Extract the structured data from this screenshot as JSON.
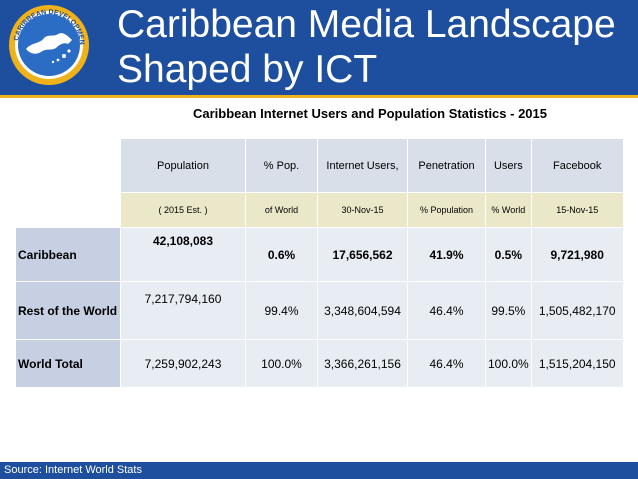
{
  "slide": {
    "title_line1": "Caribbean Media Landscape",
    "title_line2": "Shaped by ICT",
    "subtitle": "Caribbean Internet Users and Population Statistics - 2015",
    "source": "Source: Internet World Stats",
    "logo_text": "CARIBBEAN DEVELOPMENT BANK"
  },
  "colors": {
    "header_bg": "#1d4f9e",
    "accent_line": "#f0b21a",
    "row_label_bg": "#c6d0e2",
    "cell_bg": "#e8ecf3",
    "header_row1_bg": "#d8dfe9",
    "header_row2_bg": "#ebe8c9"
  },
  "table": {
    "headers1": [
      "Population",
      "% Pop.",
      "Internet Users,",
      "Penetration",
      "Users",
      "Facebook"
    ],
    "headers2": [
      "( 2015 Est. )",
      "of World",
      "30-Nov-15",
      "% Population",
      "% World",
      "15-Nov-15"
    ],
    "rows": [
      {
        "label": "Caribbean",
        "cells": [
          "42,108,083",
          "0.6%",
          "17,656,562",
          "41.9%",
          "0.5%",
          "9,721,980"
        ]
      },
      {
        "label": "Rest of the World",
        "cells": [
          "7,217,794,160",
          "99.4%",
          "3,348,604,594",
          "46.4%",
          "99.5%",
          "1,505,482,170"
        ]
      },
      {
        "label": "World Total",
        "cells": [
          "7,259,902,243",
          "100.0%",
          "3,366,261,156",
          "46.4%",
          "100.0%",
          "1,515,204,150"
        ]
      }
    ]
  }
}
